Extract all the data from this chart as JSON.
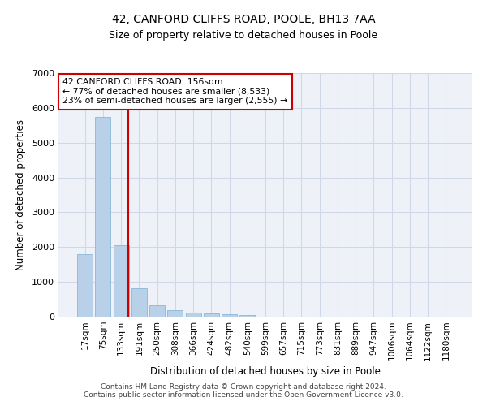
{
  "title1": "42, CANFORD CLIFFS ROAD, POOLE, BH13 7AA",
  "title2": "Size of property relative to detached houses in Poole",
  "xlabel": "Distribution of detached houses by size in Poole",
  "ylabel": "Number of detached properties",
  "categories": [
    "17sqm",
    "75sqm",
    "133sqm",
    "191sqm",
    "250sqm",
    "308sqm",
    "366sqm",
    "424sqm",
    "482sqm",
    "540sqm",
    "599sqm",
    "657sqm",
    "715sqm",
    "773sqm",
    "831sqm",
    "889sqm",
    "947sqm",
    "1006sqm",
    "1064sqm",
    "1122sqm",
    "1180sqm"
  ],
  "values": [
    1800,
    5750,
    2050,
    820,
    330,
    195,
    120,
    100,
    65,
    50,
    10,
    5,
    2,
    0,
    0,
    0,
    0,
    0,
    0,
    0,
    0
  ],
  "bar_color": "#b8d0e8",
  "bar_edgecolor": "#7bafd4",
  "vline_color": "#cc0000",
  "annotation_text": "42 CANFORD CLIFFS ROAD: 156sqm\n← 77% of detached houses are smaller (8,533)\n23% of semi-detached houses are larger (2,555) →",
  "annotation_box_color": "#cc0000",
  "ylim": [
    0,
    7000
  ],
  "yticks": [
    0,
    1000,
    2000,
    3000,
    4000,
    5000,
    6000,
    7000
  ],
  "grid_color": "#d0d8e8",
  "background_color": "#eef2f8",
  "footer1": "Contains HM Land Registry data © Crown copyright and database right 2024.",
  "footer2": "Contains public sector information licensed under the Open Government Licence v3.0."
}
